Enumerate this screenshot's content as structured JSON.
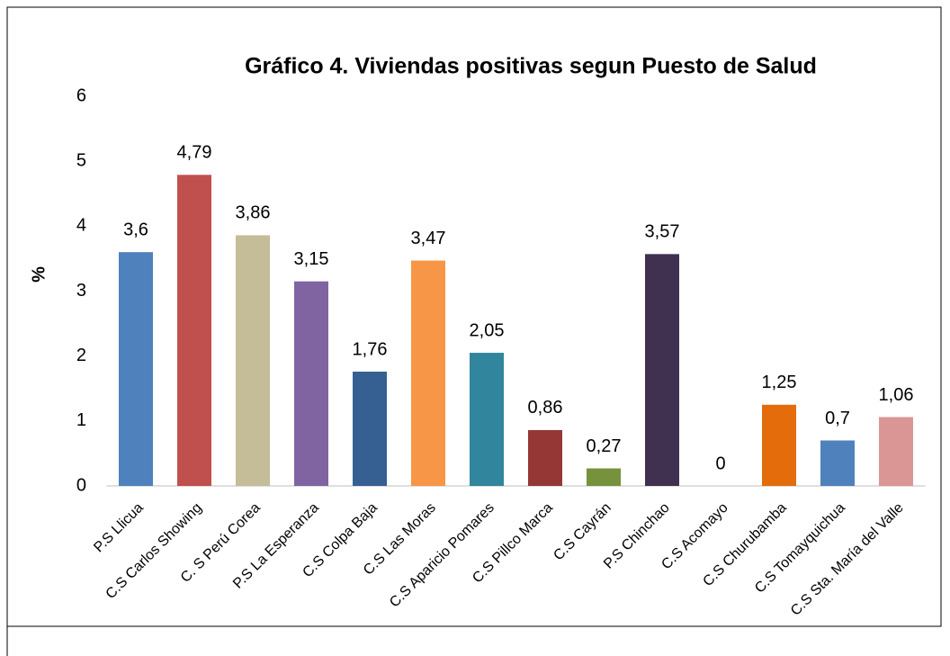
{
  "chart_data": {
    "type": "bar",
    "title": "Gráfico 4. Viviendas positivas segun Puesto de Salud",
    "y_label": "%",
    "categories": [
      "P.S Llicua",
      "C.S Carlos Showing",
      "C. S Perú Corea",
      "P.S La Esperanza",
      "C.S Colpa Baja",
      "C.S Las Moras",
      "C.S Aparicio Pomares",
      "C.S Pillco Marca",
      "C.S Cayrán",
      "P.S Chinchao",
      "C.S Acomayo",
      "C.S Churubamba",
      "C.S Tomayquichua",
      "C.S Sta. María del Valle"
    ],
    "values": [
      3.6,
      4.79,
      3.86,
      3.15,
      1.76,
      3.47,
      2.05,
      0.86,
      0.27,
      3.57,
      0,
      1.25,
      0.7,
      1.06
    ],
    "value_labels": [
      "3,6",
      "4,79",
      "3,86",
      "3,15",
      "1,76",
      "3,47",
      "2,05",
      "0,86",
      "0,27",
      "3,57",
      "0",
      "1,25",
      "0,7",
      "1,06"
    ],
    "colors": [
      "#4f81bd",
      "#c0504d",
      "#c4bd97",
      "#8064a2",
      "#366092",
      "#f79646",
      "#31859c",
      "#953735",
      "#76923c",
      "#403151",
      "#4bacc6",
      "#e46c0a",
      "#4f81bd",
      "#d99694"
    ],
    "ylim": [
      0,
      6
    ],
    "yticks": [
      0,
      1,
      2,
      3,
      4,
      5,
      6
    ],
    "grid": false
  }
}
